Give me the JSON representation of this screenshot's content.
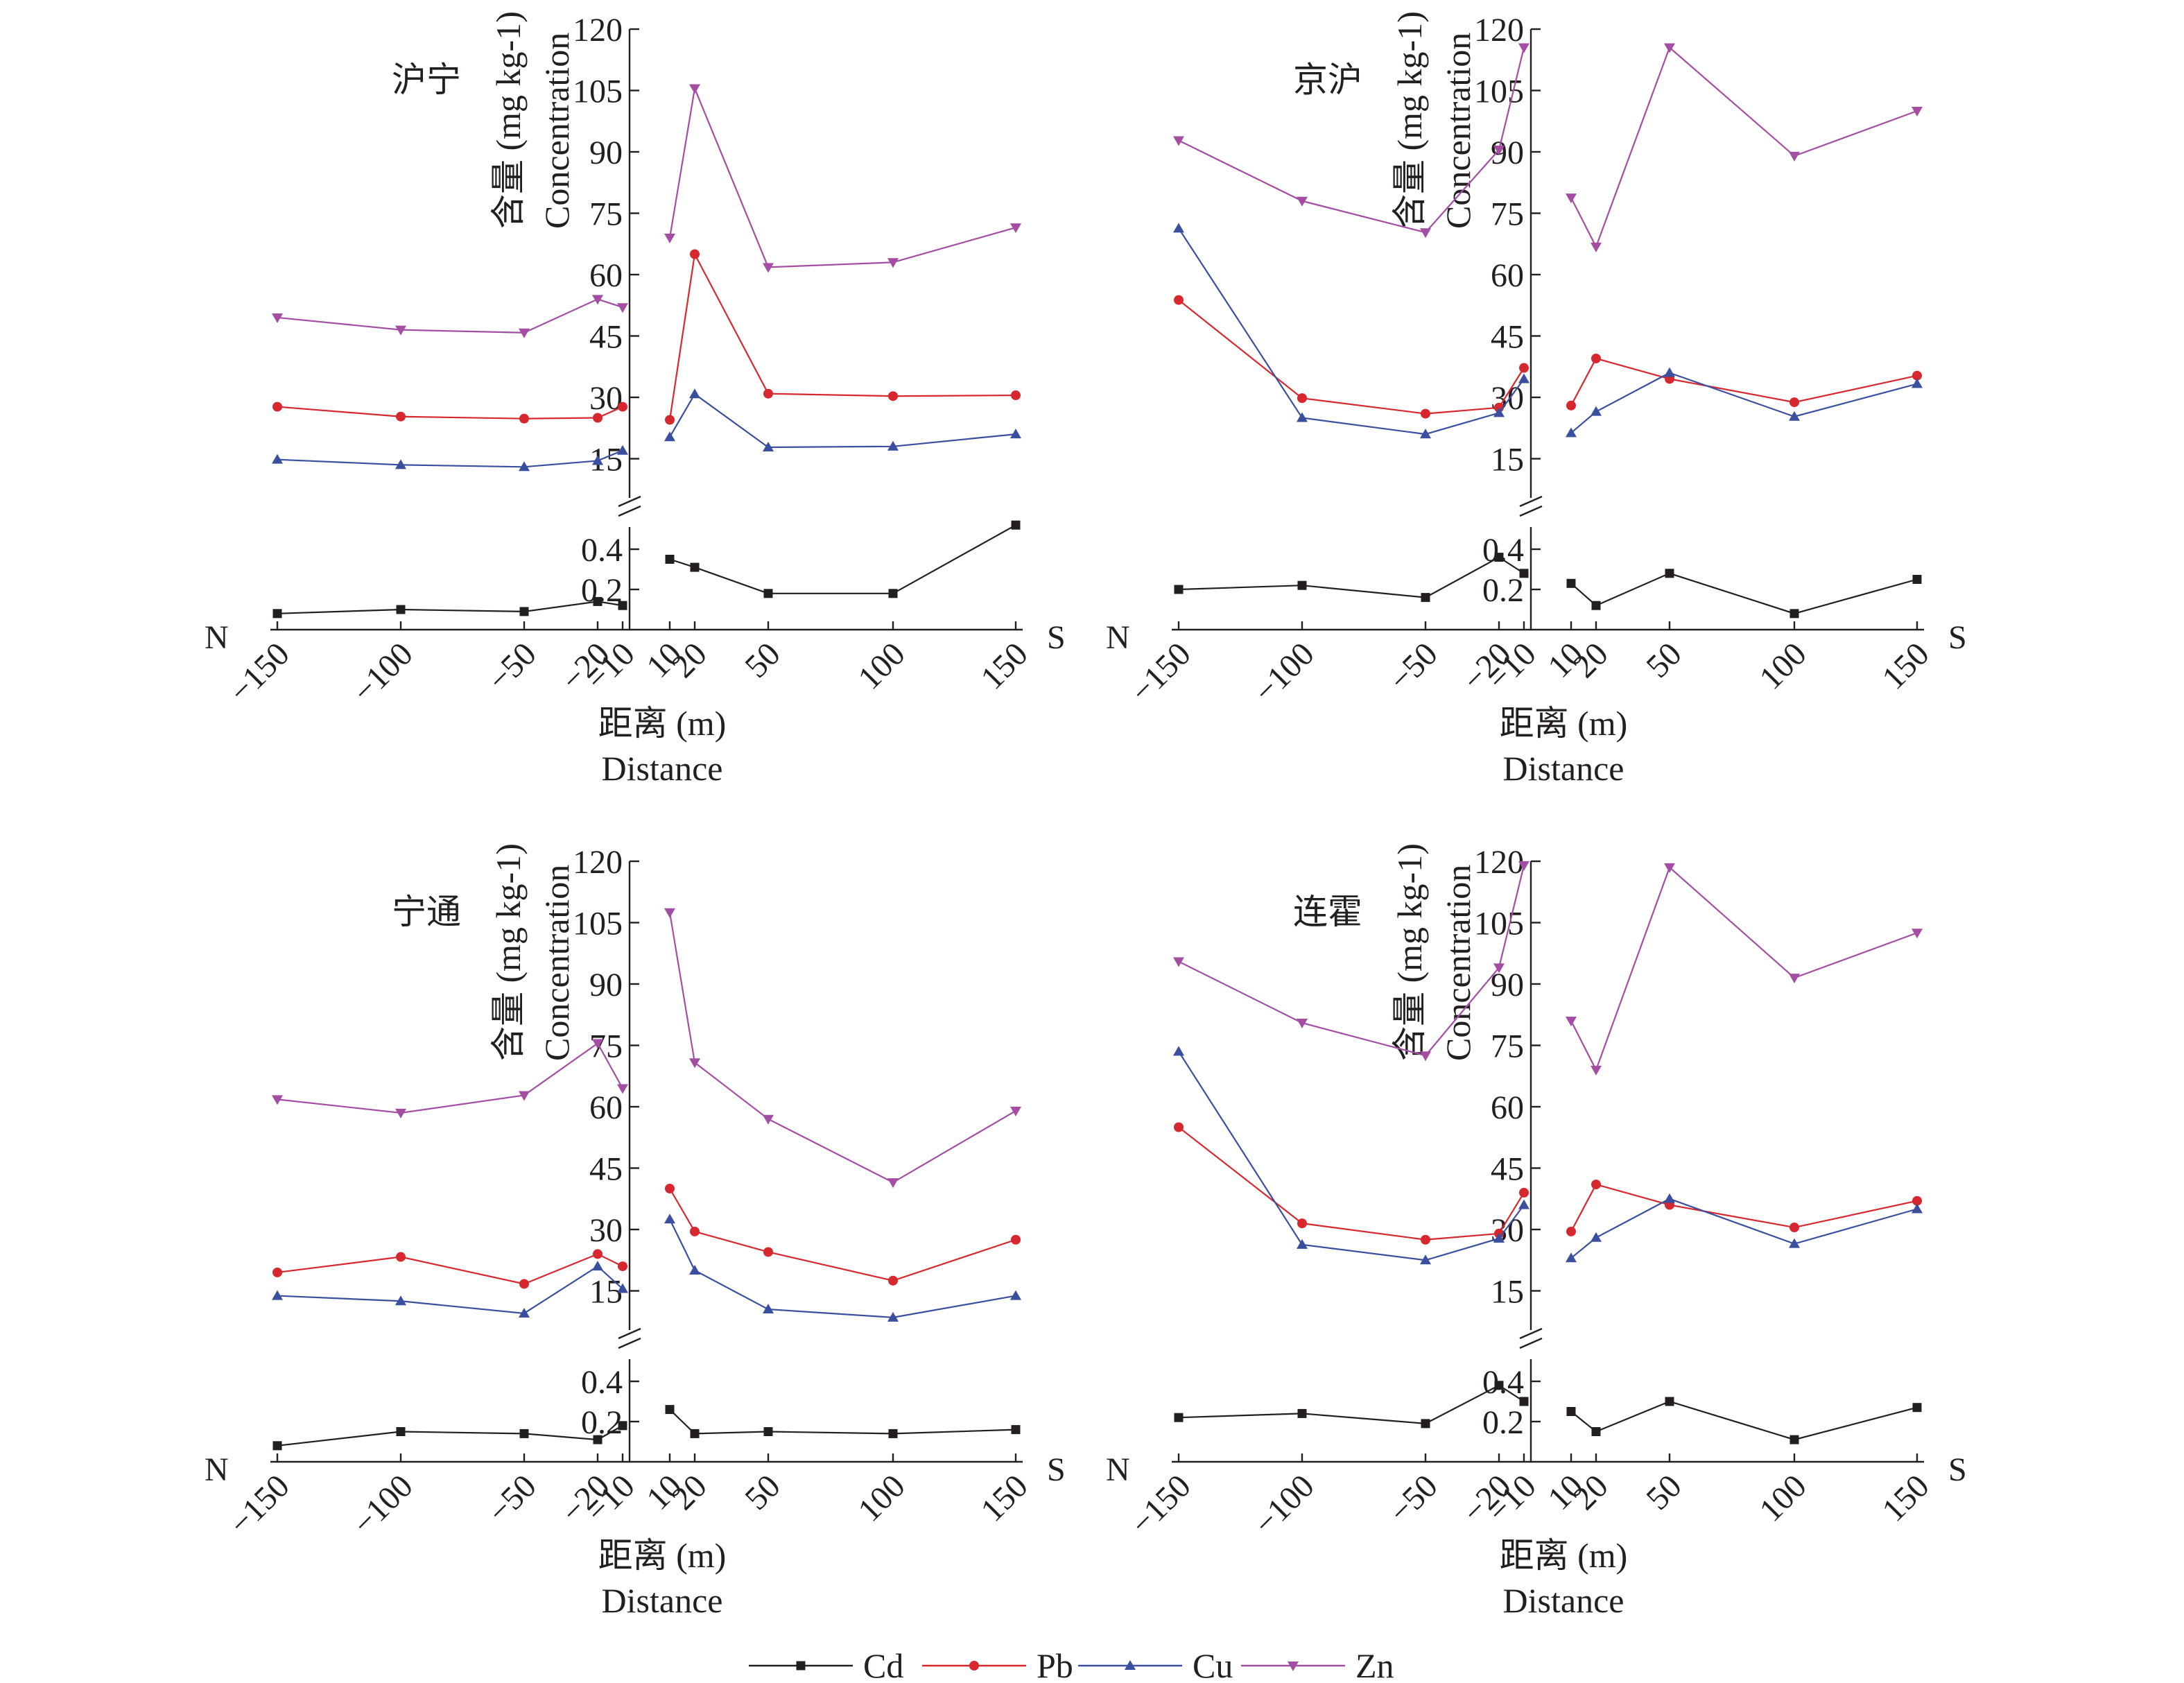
{
  "colors": {
    "Cd": "#231f20",
    "Pb": "#d7282f",
    "Cu": "#3a4f9e",
    "Zn": "#a34ea3",
    "axis": "#231f20"
  },
  "legend": [
    {
      "name": "Cd",
      "marker": "square"
    },
    {
      "name": "Pb",
      "marker": "circle"
    },
    {
      "name": "Cu",
      "marker": "triangle-up"
    },
    {
      "name": "Zn",
      "marker": "triangle-down"
    }
  ],
  "chart_data": [
    {
      "type": "line",
      "title": "沪宁",
      "xlabel": "距离 (m)",
      "xlabel2": "Distance",
      "ylabel": "含量 (mg kg-1)",
      "ylabel2": "Concentration",
      "x_ticks": [
        "-150",
        "-100",
        "-50",
        "-20",
        "-10",
        "10",
        "20",
        "50",
        "100",
        "150"
      ],
      "y_ticks_upper": [
        "15",
        "30",
        "45",
        "60",
        "75",
        "90",
        "105",
        "120"
      ],
      "y_ticks_lower": [
        "0.2",
        "0.4"
      ],
      "ylim_upper": [
        5,
        120
      ],
      "ylim_lower": [
        0,
        0.6
      ],
      "dir_left": "N",
      "dir_right": "S",
      "series": [
        {
          "name": "Cd",
          "x": [
            -150,
            -100,
            -50,
            -20,
            -10,
            10,
            20,
            50,
            100,
            150
          ],
          "values": [
            0.08,
            0.1,
            0.09,
            0.14,
            0.12,
            0.35,
            0.31,
            0.18,
            0.18,
            0.52
          ]
        },
        {
          "name": "Pb",
          "x": [
            -150,
            -100,
            -50,
            -20,
            -10,
            10,
            20,
            50,
            100,
            150
          ],
          "values": [
            27.7,
            25.3,
            24.8,
            25,
            27.7,
            24.5,
            65,
            30.9,
            30.3,
            30.5
          ]
        },
        {
          "name": "Cu",
          "x": [
            -150,
            -100,
            -50,
            -20,
            -10,
            10,
            20,
            50,
            100,
            150
          ],
          "values": [
            14.8,
            13.5,
            13,
            14.5,
            17,
            20.3,
            30.8,
            17.8,
            18,
            21
          ]
        },
        {
          "name": "Zn",
          "x": [
            -150,
            -100,
            -50,
            -20,
            -10,
            10,
            20,
            50,
            100,
            150
          ],
          "values": [
            49.5,
            46.5,
            45.8,
            54,
            52,
            69,
            105.5,
            61.8,
            63,
            71.5
          ]
        }
      ]
    },
    {
      "type": "line",
      "title": "京沪",
      "xlabel": "距离 (m)",
      "xlabel2": "Distance",
      "ylabel": "含量 (mg kg-1)",
      "ylabel2": "Concentration",
      "x_ticks": [
        "-150",
        "-100",
        "-50",
        "-20",
        "-10",
        "10",
        "20",
        "50",
        "100",
        "150"
      ],
      "y_ticks_upper": [
        "15",
        "30",
        "45",
        "60",
        "75",
        "90",
        "105",
        "120"
      ],
      "y_ticks_lower": [
        "0.2",
        "0.4"
      ],
      "ylim_upper": [
        5,
        120
      ],
      "ylim_lower": [
        0,
        0.6
      ],
      "dir_left": "N",
      "dir_right": "S",
      "series": [
        {
          "name": "Cd",
          "x": [
            -150,
            -100,
            -50,
            -20,
            -10,
            10,
            20,
            50,
            100,
            150
          ],
          "values": [
            0.2,
            0.22,
            0.16,
            0.36,
            0.28,
            0.23,
            0.12,
            0.28,
            0.08,
            0.25
          ]
        },
        {
          "name": "Pb",
          "x": [
            -150,
            -100,
            -50,
            -20,
            -10,
            10,
            20,
            50,
            100,
            150
          ],
          "values": [
            53.8,
            29.8,
            26,
            27.5,
            37.2,
            28,
            39.5,
            34.5,
            28.8,
            35.3
          ]
        },
        {
          "name": "Cu",
          "x": [
            -150,
            -100,
            -50,
            -20,
            -10,
            10,
            20,
            50,
            100,
            150
          ],
          "values": [
            71.3,
            25,
            21,
            26.2,
            34.5,
            21.3,
            26.5,
            36,
            25.3,
            33.3
          ]
        },
        {
          "name": "Zn",
          "x": [
            -150,
            -100,
            -50,
            -20,
            -10,
            10,
            20,
            50,
            100,
            150
          ],
          "values": [
            92.8,
            78,
            70.3,
            90.5,
            115.5,
            78.8,
            66.8,
            115.5,
            89,
            100
          ]
        }
      ]
    },
    {
      "type": "line",
      "title": "宁通",
      "xlabel": "距离 (m)",
      "xlabel2": "Distance",
      "ylabel": "含量 (mg kg-1)",
      "ylabel2": "Concentration",
      "x_ticks": [
        "-150",
        "-100",
        "-50",
        "-20",
        "-10",
        "10",
        "20",
        "50",
        "100",
        "150"
      ],
      "y_ticks_upper": [
        "15",
        "30",
        "45",
        "60",
        "75",
        "90",
        "105",
        "120"
      ],
      "y_ticks_lower": [
        "0.2",
        "0.4"
      ],
      "ylim_upper": [
        5,
        120
      ],
      "ylim_lower": [
        0,
        0.6
      ],
      "dir_left": "N",
      "dir_right": "S",
      "series": [
        {
          "name": "Cd",
          "x": [
            -150,
            -100,
            -50,
            -20,
            -10,
            10,
            20,
            50,
            100,
            150
          ],
          "values": [
            0.08,
            0.15,
            0.14,
            0.11,
            0.18,
            0.26,
            0.14,
            0.15,
            0.14,
            0.16
          ]
        },
        {
          "name": "Pb",
          "x": [
            -150,
            -100,
            -50,
            -20,
            -10,
            10,
            20,
            50,
            100,
            150
          ],
          "values": [
            19.5,
            23.3,
            16.7,
            24,
            21,
            40,
            29.5,
            24.5,
            17.5,
            27.5
          ]
        },
        {
          "name": "Cu",
          "x": [
            -150,
            -100,
            -50,
            -20,
            -10,
            10,
            20,
            50,
            100,
            150
          ],
          "values": [
            13.8,
            12.5,
            9.5,
            21,
            15.5,
            32.5,
            20,
            10.5,
            8.5,
            13.8
          ]
        },
        {
          "name": "Zn",
          "x": [
            -150,
            -100,
            -50,
            -20,
            -10,
            10,
            20,
            50,
            100,
            150
          ],
          "values": [
            61.8,
            58.5,
            62.8,
            75.5,
            64.5,
            107.5,
            70.8,
            57,
            41.5,
            59
          ]
        }
      ]
    },
    {
      "type": "line",
      "title": "连霍",
      "xlabel": "距离 (m)",
      "xlabel2": "Distance",
      "ylabel": "含量 (mg kg-1)",
      "ylabel2": "Concentration",
      "x_ticks": [
        "-150",
        "-100",
        "-50",
        "-20",
        "-10",
        "10",
        "20",
        "50",
        "100",
        "150"
      ],
      "y_ticks_upper": [
        "15",
        "30",
        "45",
        "60",
        "75",
        "90",
        "105",
        "120"
      ],
      "y_ticks_lower": [
        "0.2",
        "0.4"
      ],
      "ylim_upper": [
        5,
        120
      ],
      "ylim_lower": [
        0,
        0.6
      ],
      "dir_left": "N",
      "dir_right": "S",
      "series": [
        {
          "name": "Cd",
          "x": [
            -150,
            -100,
            -50,
            -20,
            -10,
            10,
            20,
            50,
            100,
            150
          ],
          "values": [
            0.22,
            0.24,
            0.19,
            0.38,
            0.3,
            0.25,
            0.15,
            0.3,
            0.11,
            0.27
          ]
        },
        {
          "name": "Pb",
          "x": [
            -150,
            -100,
            -50,
            -20,
            -10,
            10,
            20,
            50,
            100,
            150
          ],
          "values": [
            55,
            31.5,
            27.5,
            29,
            39,
            29.5,
            41,
            36,
            30.5,
            37
          ]
        },
        {
          "name": "Cu",
          "x": [
            -150,
            -100,
            -50,
            -20,
            -10,
            10,
            20,
            50,
            100,
            150
          ],
          "values": [
            73.5,
            26.3,
            22.5,
            27.8,
            36,
            23,
            28,
            37.5,
            26.5,
            35
          ]
        },
        {
          "name": "Zn",
          "x": [
            -150,
            -100,
            -50,
            -20,
            -10,
            10,
            20,
            50,
            100,
            150
          ],
          "values": [
            95.5,
            80.5,
            72.5,
            94,
            119,
            81,
            69,
            118.5,
            91.5,
            102.5
          ]
        }
      ]
    }
  ]
}
